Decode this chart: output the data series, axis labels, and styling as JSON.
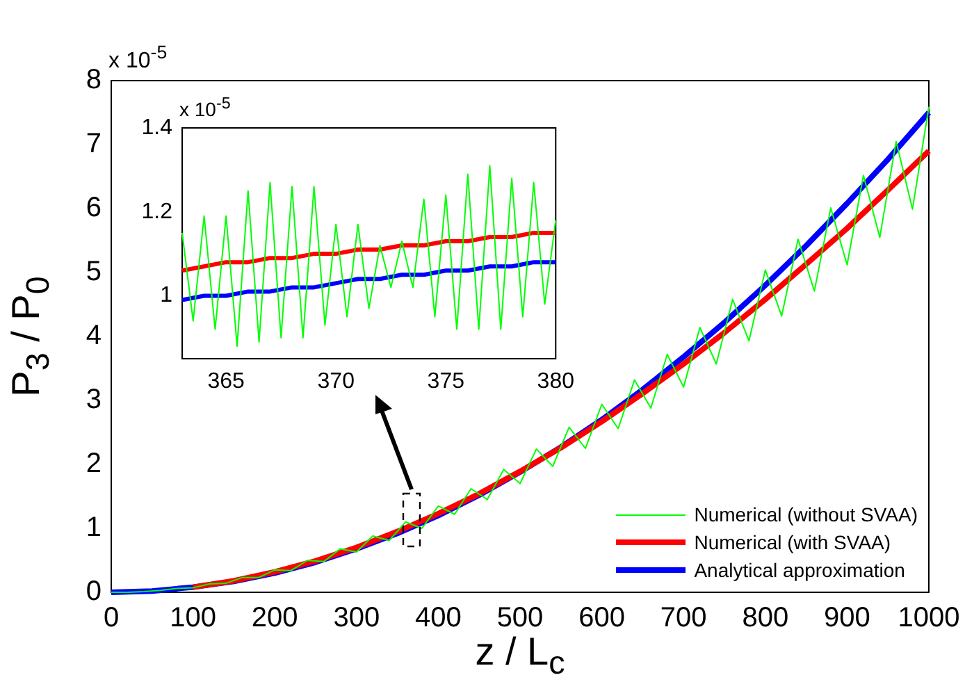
{
  "chart_data": [
    {
      "type": "line",
      "xlabel": "z / L$_{c}$",
      "ylabel": "P$_{3}$ / P$_{0}$",
      "annotations": [
        "x 10$^{-5}$"
      ],
      "xlim": [
        0,
        1000
      ],
      "ylim": [
        0,
        8
      ],
      "xticks": [
        0,
        100,
        200,
        300,
        400,
        500,
        600,
        700,
        800,
        900,
        1000
      ],
      "yticks": [
        0,
        1,
        2,
        3,
        4,
        5,
        6,
        7,
        8
      ],
      "grid": false,
      "legend": "bottom right",
      "marker": "none",
      "series": [
        {
          "name": "Numerical (without SVAA)",
          "color": "#00ff00",
          "x": [
            0,
            20,
            40,
            60,
            80,
            100,
            120,
            140,
            160,
            180,
            200,
            220,
            240,
            260,
            280,
            300,
            320,
            340,
            360,
            380,
            400,
            420,
            440,
            460,
            480,
            500,
            520,
            540,
            560,
            580,
            600,
            620,
            640,
            660,
            680,
            700,
            720,
            740,
            760,
            780,
            800,
            820,
            840,
            860,
            880,
            900,
            920,
            940,
            960,
            980,
            1000
          ],
          "values": [
            0,
            0,
            0.01,
            0.03,
            0.06,
            0.07,
            0.13,
            0.14,
            0.23,
            0.23,
            0.35,
            0.34,
            0.5,
            0.48,
            0.68,
            0.63,
            0.88,
            0.81,
            1.1,
            1.0,
            1.35,
            1.22,
            1.62,
            1.45,
            1.92,
            1.7,
            2.24,
            1.97,
            2.58,
            2.25,
            2.94,
            2.56,
            3.32,
            2.88,
            3.72,
            3.21,
            4.14,
            3.57,
            4.58,
            3.93,
            5.04,
            4.32,
            5.52,
            4.71,
            6.01,
            5.12,
            6.52,
            5.55,
            7.05,
            5.99,
            7.59
          ]
        },
        {
          "name": "Numerical (with SVAA)",
          "color": "#ff0000",
          "x": [
            100,
            150,
            200,
            250,
            300,
            350,
            400,
            450,
            500,
            550,
            600,
            650,
            700,
            750,
            800,
            850,
            900,
            950,
            1000
          ],
          "values": [
            0.08,
            0.18,
            0.32,
            0.49,
            0.7,
            0.95,
            1.23,
            1.54,
            1.89,
            2.26,
            2.67,
            3.11,
            3.57,
            4.06,
            4.58,
            5.13,
            5.69,
            6.29,
            6.9
          ]
        },
        {
          "name": "Analytical approximation",
          "color": "#0000ff",
          "x": [
            0,
            50,
            100,
            150,
            200,
            250,
            300,
            350,
            400,
            450,
            500,
            550,
            600,
            650,
            700,
            750,
            800,
            850,
            900,
            950,
            1000
          ],
          "values": [
            0,
            0.02,
            0.08,
            0.17,
            0.3,
            0.47,
            0.68,
            0.92,
            1.2,
            1.52,
            1.88,
            2.27,
            2.7,
            3.17,
            3.68,
            4.22,
            4.8,
            5.42,
            6.08,
            6.77,
            7.5
          ]
        }
      ]
    },
    {
      "type": "line",
      "annotations": [
        "x 10$^{-5}$"
      ],
      "xlim": [
        363,
        380
      ],
      "ylim": [
        0.85,
        1.4
      ],
      "xticks": [
        365,
        370,
        375,
        380
      ],
      "yticks": [
        1,
        1.2,
        1.4
      ],
      "grid": false,
      "marker": "none",
      "series": [
        {
          "color": "#00ff00",
          "x": [
            363,
            363.5,
            364,
            364.5,
            365,
            365.5,
            366,
            366.5,
            367,
            367.5,
            368,
            368.5,
            369,
            369.5,
            370,
            370.5,
            371,
            371.5,
            372,
            372.5,
            373,
            373.5,
            374,
            374.5,
            375,
            375.5,
            376,
            376.5,
            377,
            377.5,
            378,
            378.5,
            379,
            379.5,
            380
          ],
          "values": [
            1.15,
            0.94,
            1.19,
            0.92,
            1.19,
            0.88,
            1.25,
            0.89,
            1.27,
            0.9,
            1.26,
            0.9,
            1.26,
            0.93,
            1.17,
            0.95,
            1.17,
            0.97,
            1.12,
            1.02,
            1.13,
            1.02,
            1.23,
            0.95,
            1.24,
            0.92,
            1.29,
            0.92,
            1.31,
            0.92,
            1.28,
            0.95,
            1.27,
            0.98,
            1.18
          ]
        },
        {
          "color": "#ff0000",
          "x": [
            363,
            364,
            365,
            366,
            367,
            368,
            369,
            370,
            371,
            372,
            373,
            374,
            375,
            376,
            377,
            378,
            379,
            380
          ],
          "values": [
            1.06,
            1.07,
            1.08,
            1.08,
            1.09,
            1.09,
            1.1,
            1.1,
            1.11,
            1.11,
            1.12,
            1.12,
            1.13,
            1.13,
            1.14,
            1.14,
            1.15,
            1.15
          ]
        },
        {
          "color": "#0000ff",
          "x": [
            363,
            364,
            365,
            366,
            367,
            368,
            369,
            370,
            371,
            372,
            373,
            374,
            375,
            376,
            377,
            378,
            379,
            380
          ],
          "values": [
            0.99,
            1.0,
            1.0,
            1.01,
            1.01,
            1.02,
            1.02,
            1.03,
            1.04,
            1.04,
            1.05,
            1.05,
            1.06,
            1.06,
            1.07,
            1.07,
            1.08,
            1.08
          ]
        }
      ]
    }
  ]
}
